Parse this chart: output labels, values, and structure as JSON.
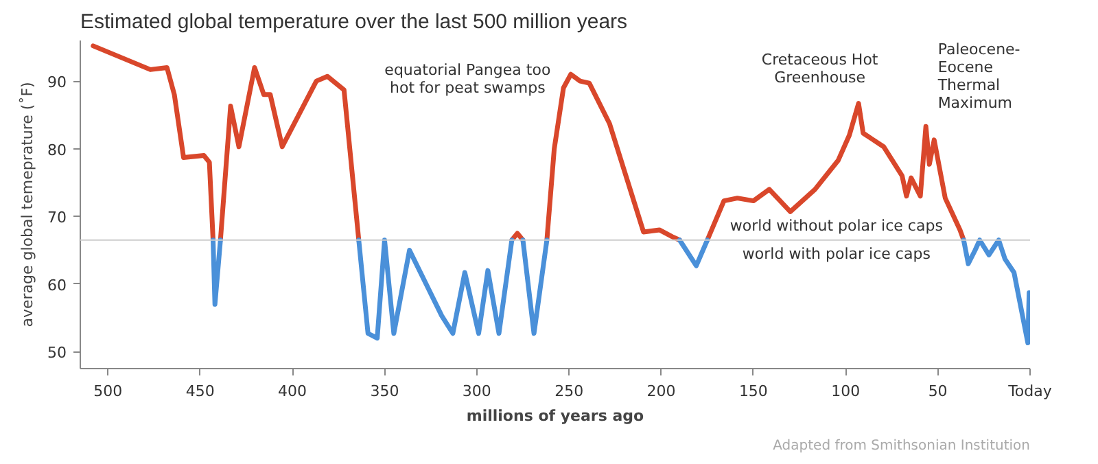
{
  "chart_data": {
    "type": "line",
    "title": "Estimated global temperature over the last 500 million years",
    "xlabel": "millions of years ago",
    "ylabel": "average global temeprature (˚F)",
    "xlim": [
      515,
      0
    ],
    "ylim": [
      47.5,
      96
    ],
    "xticks": [
      500,
      450,
      400,
      350,
      300,
      250,
      200,
      150,
      100,
      50,
      {
        "value": 0,
        "label": "Today"
      }
    ],
    "yticks": [
      50,
      60,
      70,
      80,
      90
    ],
    "grid": false,
    "marker": "none",
    "line_style": "solid",
    "ref_lines": [
      {
        "axis": "y",
        "value": 66.5,
        "color": "#cccccc"
      }
    ],
    "annotations": [
      "equatorial Pangea too\nhot for peat swamps",
      "Cretaceous Hot\nGreenhouse",
      "Paleocene-\nEocene\nThermal\nMaximum",
      "world without polar ice caps",
      "world with polar ice caps",
      "Adapted from Smithsonian Institution"
    ],
    "series": [
      {
        "color": "#d9472b",
        "x": [
          508,
          477,
          468,
          464,
          459,
          448,
          445,
          443
        ],
        "values": [
          95.2,
          91.7,
          92,
          88,
          78.7,
          79,
          78,
          66.5
        ]
      },
      {
        "color": "#d9472b",
        "x": [
          439,
          433.5,
          429,
          420.5,
          415.5,
          412,
          405.5,
          387,
          381,
          372,
          364
        ],
        "values": [
          66.5,
          86.3,
          80.3,
          92,
          88,
          88,
          80.3,
          90,
          90.7,
          88.7,
          66.5
        ]
      },
      {
        "color": "#d9472b",
        "x": [
          281,
          278,
          275
        ],
        "values": [
          66.5,
          67.5,
          66.5
        ]
      },
      {
        "color": "#d9472b",
        "x": [
          262,
          258,
          253,
          249,
          244,
          239,
          228,
          209.6,
          201,
          194,
          190
        ],
        "values": [
          66.5,
          80,
          89,
          91,
          90,
          89.7,
          83.7,
          67.7,
          68,
          67,
          66.5
        ]
      },
      {
        "color": "#d9472b",
        "x": [
          175,
          166,
          158.7,
          150,
          141.4,
          130,
          116.6,
          104,
          98,
          93,
          90.5,
          79.4,
          69.4,
          67,
          64.5,
          59.5,
          56.5,
          54.6,
          52,
          46,
          38,
          36
        ],
        "values": [
          66.5,
          72.3,
          72.7,
          72.3,
          74,
          70.7,
          74,
          78.3,
          82,
          86.7,
          82.3,
          80.3,
          76,
          73,
          75.7,
          73,
          83.3,
          77.7,
          81.3,
          72.7,
          68,
          66.5
        ]
      },
      {
        "color": "#4a90d9",
        "x": [
          443,
          442,
          439
        ],
        "values": [
          66.5,
          57,
          66.5
        ]
      },
      {
        "color": "#4a90d9",
        "x": [
          364,
          359,
          354,
          350,
          345,
          336.5,
          319,
          313,
          306.5,
          299,
          294,
          288,
          281
        ],
        "values": [
          66.5,
          52.7,
          52,
          66.5,
          52.7,
          65,
          55.3,
          52.7,
          61.7,
          52.7,
          62,
          52.7,
          66.5
        ]
      },
      {
        "color": "#4a90d9",
        "x": [
          275,
          269,
          262
        ],
        "values": [
          66.5,
          52.7,
          66.5
        ]
      },
      {
        "color": "#4a90d9",
        "x": [
          190,
          181,
          175
        ],
        "values": [
          66.5,
          62.7,
          66.5
        ]
      },
      {
        "color": "#4a90d9",
        "x": [
          36,
          33.5,
          29.8,
          27.3,
          22.3,
          17,
          13.6,
          8.7,
          1.2,
          0.5
        ],
        "values": [
          66.5,
          63,
          65,
          66.5,
          64.3,
          66.5,
          63.7,
          61.7,
          51.3,
          58.7
        ]
      }
    ]
  }
}
